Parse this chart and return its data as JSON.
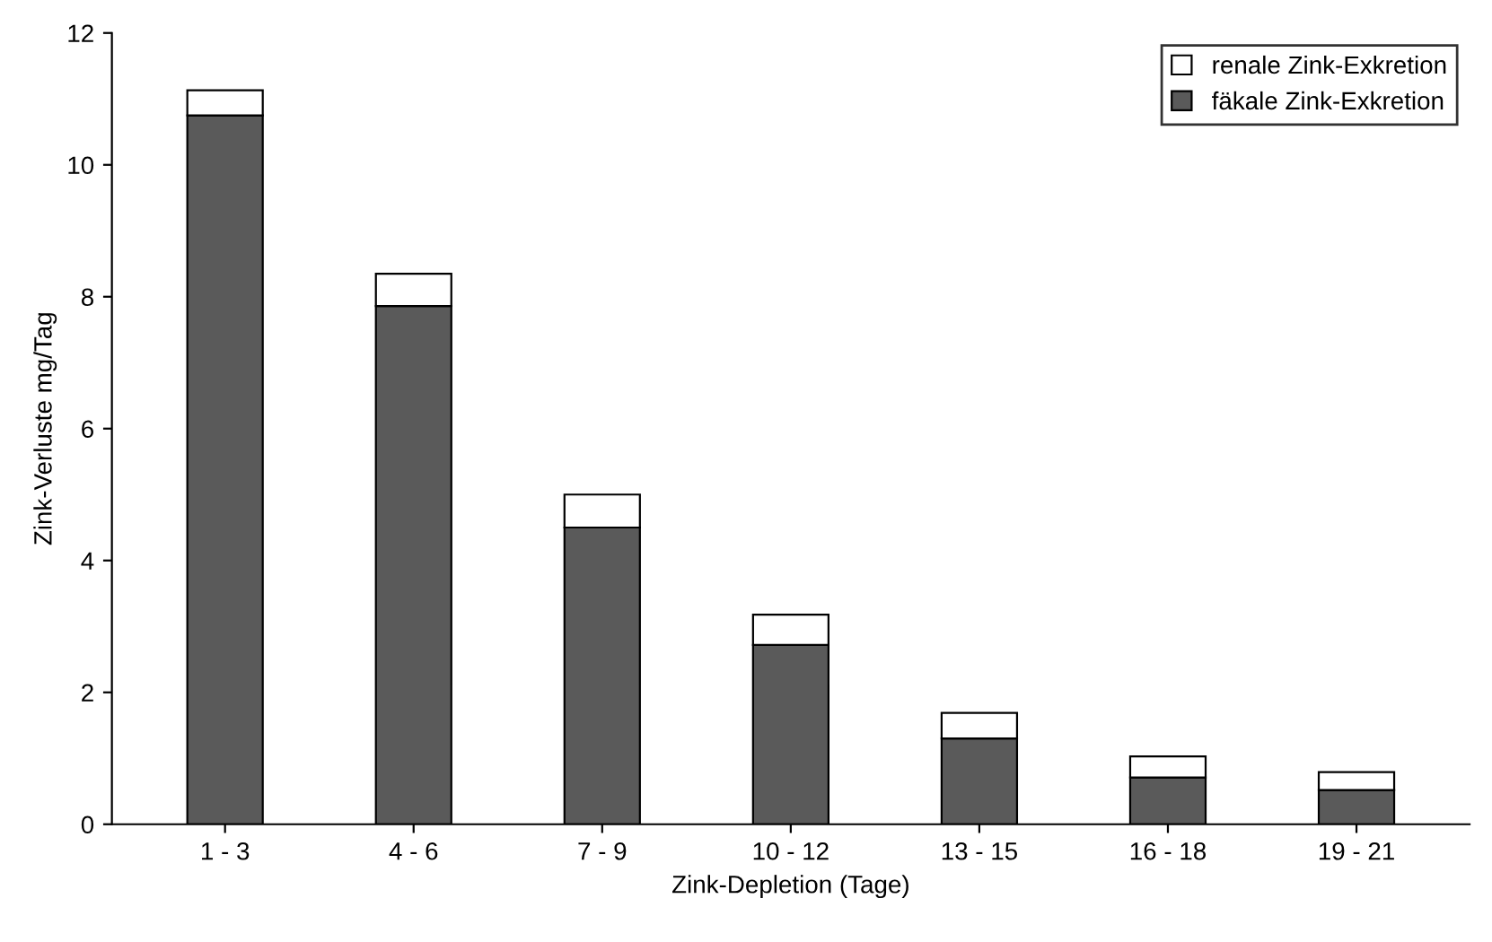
{
  "chart_data": {
    "type": "bar",
    "stacked": true,
    "xlabel": "Zink-Depletion (Tage)",
    "ylabel": "Zink-Verluste mg/Tag",
    "categories": [
      "1 - 3",
      "4 - 6",
      "7 - 9",
      "10 - 12",
      "13 - 15",
      "16 - 18",
      "19 - 21"
    ],
    "series": [
      {
        "name": "fäkale Zink-Exkretion",
        "color": "#5a5a5a",
        "values": [
          10.75,
          7.86,
          4.5,
          2.72,
          1.3,
          0.71,
          0.52
        ]
      },
      {
        "name": "renale Zink-Exkretion",
        "color": "#ffffff",
        "values": [
          0.38,
          0.49,
          0.5,
          0.46,
          0.39,
          0.32,
          0.27
        ]
      }
    ],
    "ylim": [
      0,
      12
    ],
    "yticks": [
      0,
      2,
      4,
      6,
      8,
      10,
      12
    ],
    "grid": false,
    "legend": "top right"
  }
}
